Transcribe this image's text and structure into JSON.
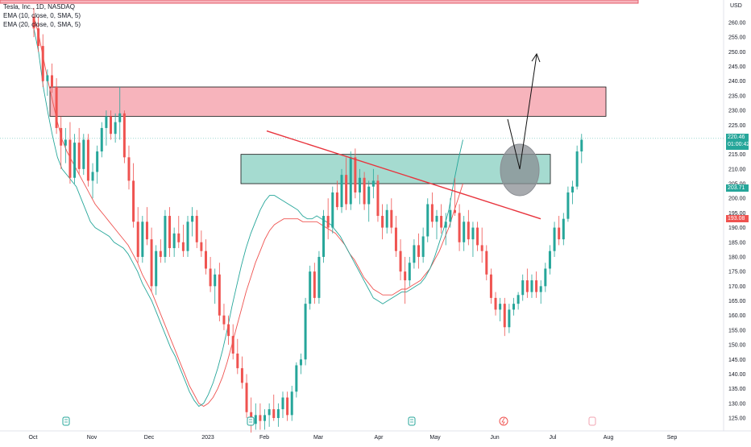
{
  "chart_data": {
    "type": "candlestick",
    "symbol_title": "Tesla, Inc., 1D, NASDAQ",
    "indicators": [
      "EMA (10, close, 0, SMA, 5)",
      "EMA (20, close, 0, SMA, 5)"
    ],
    "currency": "USD",
    "ylim": [
      121,
      266
    ],
    "y_ticks": [
      "125.00",
      "130.00",
      "135.00",
      "140.00",
      "145.00",
      "150.00",
      "155.00",
      "160.00",
      "165.00",
      "170.00",
      "175.00",
      "180.00",
      "185.00",
      "190.00",
      "195.00",
      "200.00",
      "205.00",
      "210.00",
      "215.00",
      "220.00",
      "225.00",
      "230.00",
      "235.00",
      "240.00",
      "245.00",
      "250.00",
      "255.00",
      "260.00"
    ],
    "x_ticks": [
      "Oct",
      "Nov",
      "Dec",
      "2023",
      "Feb",
      "Mar",
      "Apr",
      "May",
      "Jun",
      "Jul",
      "Aug",
      "Sep"
    ],
    "price_labels": {
      "last_price": "220.46",
      "countdown": "01:00:42",
      "green_label": "203.71",
      "red_label": "193.08"
    },
    "candles": [
      {
        "o": 262,
        "h": 265,
        "l": 255,
        "c": 258
      },
      {
        "o": 258,
        "h": 262,
        "l": 250,
        "c": 252
      },
      {
        "o": 252,
        "h": 256,
        "l": 238,
        "c": 240
      },
      {
        "o": 240,
        "h": 244,
        "l": 235,
        "c": 242
      },
      {
        "o": 242,
        "h": 246,
        "l": 236,
        "c": 238
      },
      {
        "o": 238,
        "h": 241,
        "l": 222,
        "c": 224
      },
      {
        "o": 224,
        "h": 228,
        "l": 210,
        "c": 218
      },
      {
        "o": 218,
        "h": 224,
        "l": 212,
        "c": 220
      },
      {
        "o": 220,
        "h": 226,
        "l": 205,
        "c": 207
      },
      {
        "o": 207,
        "h": 222,
        "l": 205,
        "c": 219
      },
      {
        "o": 219,
        "h": 224,
        "l": 208,
        "c": 210
      },
      {
        "o": 210,
        "h": 222,
        "l": 208,
        "c": 220
      },
      {
        "o": 220,
        "h": 222,
        "l": 204,
        "c": 206
      },
      {
        "o": 206,
        "h": 212,
        "l": 200,
        "c": 209
      },
      {
        "o": 209,
        "h": 218,
        "l": 205,
        "c": 216
      },
      {
        "o": 216,
        "h": 226,
        "l": 214,
        "c": 224
      },
      {
        "o": 224,
        "h": 230,
        "l": 218,
        "c": 228
      },
      {
        "o": 228,
        "h": 230,
        "l": 220,
        "c": 222
      },
      {
        "o": 222,
        "h": 229,
        "l": 219,
        "c": 226
      },
      {
        "o": 226,
        "h": 238,
        "l": 220,
        "c": 229
      },
      {
        "o": 229,
        "h": 230,
        "l": 212,
        "c": 214
      },
      {
        "o": 214,
        "h": 218,
        "l": 203,
        "c": 206
      },
      {
        "o": 206,
        "h": 212,
        "l": 190,
        "c": 192
      },
      {
        "o": 192,
        "h": 197,
        "l": 178,
        "c": 180
      },
      {
        "o": 180,
        "h": 194,
        "l": 178,
        "c": 192
      },
      {
        "o": 192,
        "h": 197,
        "l": 184,
        "c": 186
      },
      {
        "o": 186,
        "h": 190,
        "l": 168,
        "c": 170
      },
      {
        "o": 170,
        "h": 184,
        "l": 167,
        "c": 182
      },
      {
        "o": 182,
        "h": 186,
        "l": 178,
        "c": 180
      },
      {
        "o": 180,
        "h": 196,
        "l": 178,
        "c": 194
      },
      {
        "o": 194,
        "h": 197,
        "l": 180,
        "c": 183
      },
      {
        "o": 183,
        "h": 190,
        "l": 180,
        "c": 188
      },
      {
        "o": 188,
        "h": 194,
        "l": 183,
        "c": 185
      },
      {
        "o": 185,
        "h": 191,
        "l": 180,
        "c": 182
      },
      {
        "o": 182,
        "h": 194,
        "l": 180,
        "c": 192
      },
      {
        "o": 192,
        "h": 197,
        "l": 187,
        "c": 194
      },
      {
        "o": 194,
        "h": 196,
        "l": 183,
        "c": 185
      },
      {
        "o": 185,
        "h": 189,
        "l": 180,
        "c": 182
      },
      {
        "o": 182,
        "h": 186,
        "l": 174,
        "c": 176
      },
      {
        "o": 176,
        "h": 180,
        "l": 168,
        "c": 170
      },
      {
        "o": 170,
        "h": 176,
        "l": 164,
        "c": 174
      },
      {
        "o": 174,
        "h": 178,
        "l": 158,
        "c": 160
      },
      {
        "o": 160,
        "h": 164,
        "l": 155,
        "c": 157
      },
      {
        "o": 157,
        "h": 160,
        "l": 150,
        "c": 153
      },
      {
        "o": 153,
        "h": 157,
        "l": 145,
        "c": 147
      },
      {
        "o": 147,
        "h": 152,
        "l": 140,
        "c": 142
      },
      {
        "o": 142,
        "h": 146,
        "l": 135,
        "c": 137
      },
      {
        "o": 137,
        "h": 140,
        "l": 125,
        "c": 127
      },
      {
        "o": 127,
        "h": 132,
        "l": 120,
        "c": 123
      },
      {
        "o": 123,
        "h": 130,
        "l": 121,
        "c": 126
      },
      {
        "o": 126,
        "h": 130,
        "l": 121,
        "c": 124
      },
      {
        "o": 124,
        "h": 128,
        "l": 121,
        "c": 126
      },
      {
        "o": 126,
        "h": 130,
        "l": 122,
        "c": 128
      },
      {
        "o": 128,
        "h": 133,
        "l": 124,
        "c": 125
      },
      {
        "o": 125,
        "h": 130,
        "l": 122,
        "c": 128
      },
      {
        "o": 128,
        "h": 134,
        "l": 125,
        "c": 132
      },
      {
        "o": 132,
        "h": 134,
        "l": 124,
        "c": 126
      },
      {
        "o": 126,
        "h": 136,
        "l": 124,
        "c": 134
      },
      {
        "o": 134,
        "h": 144,
        "l": 132,
        "c": 143
      },
      {
        "o": 143,
        "h": 147,
        "l": 140,
        "c": 145
      },
      {
        "o": 145,
        "h": 166,
        "l": 143,
        "c": 164
      },
      {
        "o": 164,
        "h": 177,
        "l": 162,
        "c": 175
      },
      {
        "o": 175,
        "h": 178,
        "l": 164,
        "c": 166
      },
      {
        "o": 166,
        "h": 182,
        "l": 164,
        "c": 180
      },
      {
        "o": 180,
        "h": 196,
        "l": 178,
        "c": 194
      },
      {
        "o": 194,
        "h": 200,
        "l": 186,
        "c": 190
      },
      {
        "o": 190,
        "h": 204,
        "l": 188,
        "c": 202
      },
      {
        "o": 202,
        "h": 206,
        "l": 196,
        "c": 197
      },
      {
        "o": 197,
        "h": 210,
        "l": 195,
        "c": 208
      },
      {
        "o": 208,
        "h": 214,
        "l": 196,
        "c": 198
      },
      {
        "o": 198,
        "h": 216,
        "l": 196,
        "c": 214
      },
      {
        "o": 214,
        "h": 217,
        "l": 200,
        "c": 202
      },
      {
        "o": 202,
        "h": 210,
        "l": 198,
        "c": 207
      },
      {
        "o": 207,
        "h": 209,
        "l": 196,
        "c": 198
      },
      {
        "o": 198,
        "h": 206,
        "l": 192,
        "c": 204
      },
      {
        "o": 204,
        "h": 210,
        "l": 200,
        "c": 206
      },
      {
        "o": 206,
        "h": 208,
        "l": 192,
        "c": 194
      },
      {
        "o": 194,
        "h": 198,
        "l": 186,
        "c": 190
      },
      {
        "o": 190,
        "h": 198,
        "l": 188,
        "c": 196
      },
      {
        "o": 196,
        "h": 200,
        "l": 188,
        "c": 190
      },
      {
        "o": 190,
        "h": 194,
        "l": 180,
        "c": 182
      },
      {
        "o": 182,
        "h": 186,
        "l": 172,
        "c": 175
      },
      {
        "o": 175,
        "h": 180,
        "l": 164,
        "c": 172
      },
      {
        "o": 172,
        "h": 180,
        "l": 170,
        "c": 178
      },
      {
        "o": 178,
        "h": 186,
        "l": 176,
        "c": 184
      },
      {
        "o": 184,
        "h": 188,
        "l": 176,
        "c": 180
      },
      {
        "o": 180,
        "h": 190,
        "l": 178,
        "c": 187
      },
      {
        "o": 187,
        "h": 200,
        "l": 185,
        "c": 198
      },
      {
        "o": 198,
        "h": 202,
        "l": 190,
        "c": 192
      },
      {
        "o": 192,
        "h": 196,
        "l": 186,
        "c": 194
      },
      {
        "o": 194,
        "h": 198,
        "l": 188,
        "c": 190
      },
      {
        "o": 190,
        "h": 195,
        "l": 184,
        "c": 192
      },
      {
        "o": 192,
        "h": 200,
        "l": 190,
        "c": 196
      },
      {
        "o": 196,
        "h": 207,
        "l": 194,
        "c": 195
      },
      {
        "o": 195,
        "h": 198,
        "l": 182,
        "c": 185
      },
      {
        "o": 185,
        "h": 194,
        "l": 182,
        "c": 192
      },
      {
        "o": 192,
        "h": 196,
        "l": 184,
        "c": 186
      },
      {
        "o": 186,
        "h": 192,
        "l": 180,
        "c": 190
      },
      {
        "o": 190,
        "h": 192,
        "l": 182,
        "c": 184
      },
      {
        "o": 184,
        "h": 190,
        "l": 178,
        "c": 182
      },
      {
        "o": 182,
        "h": 184,
        "l": 172,
        "c": 174
      },
      {
        "o": 174,
        "h": 176,
        "l": 164,
        "c": 166
      },
      {
        "o": 166,
        "h": 168,
        "l": 160,
        "c": 162
      },
      {
        "o": 162,
        "h": 166,
        "l": 158,
        "c": 164
      },
      {
        "o": 164,
        "h": 166,
        "l": 153,
        "c": 156
      },
      {
        "o": 156,
        "h": 164,
        "l": 154,
        "c": 162
      },
      {
        "o": 162,
        "h": 166,
        "l": 160,
        "c": 164
      },
      {
        "o": 164,
        "h": 168,
        "l": 162,
        "c": 167
      },
      {
        "o": 167,
        "h": 174,
        "l": 165,
        "c": 172
      },
      {
        "o": 172,
        "h": 176,
        "l": 166,
        "c": 168
      },
      {
        "o": 168,
        "h": 174,
        "l": 166,
        "c": 172
      },
      {
        "o": 172,
        "h": 175,
        "l": 166,
        "c": 168
      },
      {
        "o": 168,
        "h": 172,
        "l": 164,
        "c": 170
      },
      {
        "o": 170,
        "h": 178,
        "l": 168,
        "c": 176
      },
      {
        "o": 176,
        "h": 184,
        "l": 174,
        "c": 182
      },
      {
        "o": 182,
        "h": 192,
        "l": 180,
        "c": 190
      },
      {
        "o": 190,
        "h": 194,
        "l": 184,
        "c": 186
      },
      {
        "o": 186,
        "h": 195,
        "l": 184,
        "c": 193
      },
      {
        "o": 193,
        "h": 204,
        "l": 192,
        "c": 202
      },
      {
        "o": 202,
        "h": 206,
        "l": 198,
        "c": 204
      },
      {
        "o": 204,
        "h": 218,
        "l": 203,
        "c": 216
      },
      {
        "o": 216,
        "h": 222,
        "l": 212,
        "c": 220
      }
    ],
    "ema10": [
      258,
      250,
      238,
      229,
      221,
      214,
      210,
      208,
      206,
      204,
      200,
      196,
      192,
      190,
      189,
      188,
      187,
      185,
      184,
      183,
      181,
      178,
      175,
      171,
      168,
      165,
      161,
      157,
      153,
      149,
      146,
      142,
      138,
      134,
      131,
      129,
      130,
      133,
      137,
      142,
      148,
      155,
      163,
      170,
      177,
      183,
      188,
      192,
      196,
      199,
      201,
      201,
      200,
      199,
      198,
      197,
      196,
      194,
      193,
      193,
      194,
      193,
      192,
      191,
      189,
      187,
      184,
      181,
      178,
      175,
      172,
      169,
      166,
      165,
      164,
      165,
      166,
      167,
      168,
      168,
      169,
      170,
      171,
      173,
      176,
      180,
      185,
      190,
      196,
      205,
      213,
      220
    ],
    "ema20": [
      262,
      256,
      248,
      240,
      233,
      226,
      220,
      216,
      213,
      210,
      207,
      204,
      201,
      198,
      196,
      194,
      192,
      190,
      188,
      186,
      184,
      181,
      178,
      174,
      171,
      168,
      164,
      160,
      156,
      152,
      148,
      144,
      140,
      136,
      133,
      130,
      129,
      130,
      132,
      135,
      139,
      144,
      150,
      156,
      162,
      168,
      173,
      178,
      182,
      186,
      189,
      191,
      192,
      193,
      193,
      193,
      193,
      192,
      192,
      192,
      192,
      191,
      190,
      189,
      188,
      186,
      184,
      181,
      179,
      176,
      173,
      171,
      169,
      168,
      167,
      167,
      167,
      168,
      169,
      169,
      170,
      171,
      172,
      174,
      176,
      179,
      182,
      186,
      190,
      195,
      200,
      205
    ],
    "zones": [
      {
        "name": "resistance-zone",
        "top": 238,
        "bottom": 228,
        "color": "#f7b4bc"
      },
      {
        "name": "support-zone",
        "top": 215,
        "bottom": 205,
        "color": "#a5dbd0"
      }
    ],
    "trendline": {
      "from": [
        331,
        223
      ],
      "to": [
        671,
        193
      ]
    },
    "colors": {
      "up": "#26a69a",
      "down": "#ef5350",
      "ema10": "#26a69a",
      "ema20": "#ef5350",
      "trend": "#e8343d"
    }
  }
}
